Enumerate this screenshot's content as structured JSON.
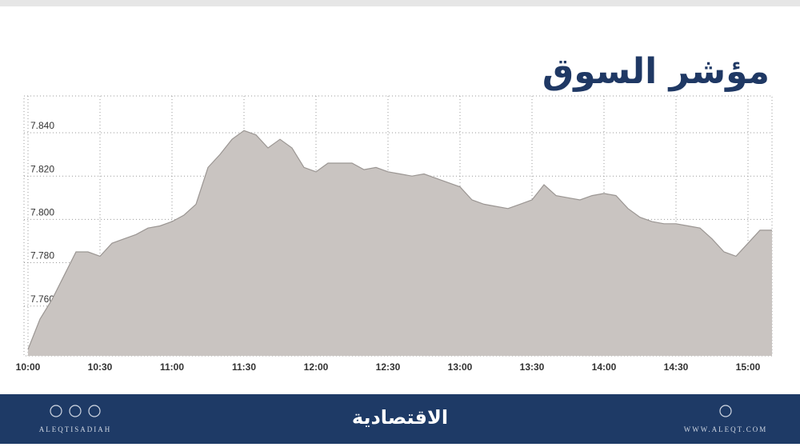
{
  "chart_data": {
    "type": "area",
    "title": "مؤشر السوق",
    "x": [
      "10:00",
      "10:05",
      "10:10",
      "10:15",
      "10:20",
      "10:25",
      "10:30",
      "10:35",
      "10:40",
      "10:45",
      "10:50",
      "10:55",
      "11:00",
      "11:05",
      "11:10",
      "11:15",
      "11:20",
      "11:25",
      "11:30",
      "11:35",
      "11:40",
      "11:45",
      "11:50",
      "11:55",
      "12:00",
      "12:05",
      "12:10",
      "12:15",
      "12:20",
      "12:25",
      "12:30",
      "12:35",
      "12:40",
      "12:45",
      "12:50",
      "12:55",
      "13:00",
      "13:05",
      "13:10",
      "13:15",
      "13:20",
      "13:25",
      "13:30",
      "13:35",
      "13:40",
      "13:45",
      "13:50",
      "13:55",
      "14:00",
      "14:05",
      "14:10",
      "14:15",
      "14:20",
      "14:25",
      "14:30",
      "14:35",
      "14:40",
      "14:45",
      "14:50",
      "14:55",
      "15:00",
      "15:05",
      "15:10"
    ],
    "values": [
      7.74,
      7.754,
      7.763,
      7.774,
      7.785,
      7.785,
      7.783,
      7.789,
      7.791,
      7.793,
      7.796,
      7.797,
      7.799,
      7.802,
      7.807,
      7.824,
      7.83,
      7.837,
      7.841,
      7.839,
      7.833,
      7.837,
      7.833,
      7.824,
      7.822,
      7.826,
      7.826,
      7.826,
      7.823,
      7.824,
      7.822,
      7.821,
      7.82,
      7.821,
      7.819,
      7.817,
      7.815,
      7.809,
      7.807,
      7.806,
      7.805,
      7.807,
      7.809,
      7.816,
      7.811,
      7.81,
      7.809,
      7.811,
      7.812,
      7.811,
      7.805,
      7.801,
      7.799,
      7.798,
      7.798,
      7.797,
      7.796,
      7.791,
      7.785,
      7.783,
      7.789,
      7.795,
      7.795
    ],
    "color": "#c9c4c1",
    "line_color": "#9b9693",
    "xlim": [
      "10:00",
      "15:10"
    ],
    "xticks": [
      "10:00",
      "10:30",
      "11:00",
      "11:30",
      "12:00",
      "12:30",
      "13:00",
      "13:30",
      "14:00",
      "14:30",
      "15:00"
    ],
    "ylim": [
      7.737,
      7.857
    ],
    "yticks": [
      {
        "value": 7.76,
        "label": "7.760"
      },
      {
        "value": 7.78,
        "label": "7.780"
      },
      {
        "value": 7.8,
        "label": "7.800"
      },
      {
        "value": 7.82,
        "label": "7.820"
      },
      {
        "value": 7.84,
        "label": "7.840"
      }
    ],
    "grid": true
  },
  "footer": {
    "brand": "الاقتصادية",
    "handle": "ALEQTISADIAH",
    "website": "WWW.ALEQT.COM"
  }
}
